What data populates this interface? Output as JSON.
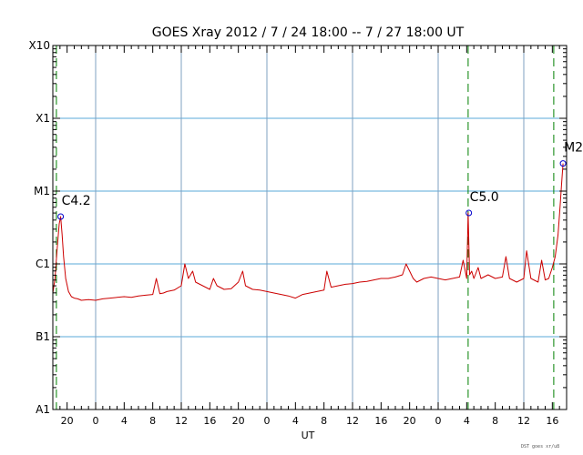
{
  "chart_data": {
    "type": "line",
    "title": "GOES Xray   2012 /  7 / 24   18:00 --  7 / 27   18:00   UT",
    "xlabel": "UT",
    "ylabel": "",
    "footer": "DST goes xr/u8",
    "x_unit": "hours since 2012-07-24 18:00 UT",
    "xlim": [
      0,
      72
    ],
    "y_scale": "log",
    "ylim_log10_wm2": [
      -8,
      -3
    ],
    "y_ticks": [
      {
        "label": "A1",
        "log10": -8
      },
      {
        "label": "B1",
        "log10": -7
      },
      {
        "label": "C1",
        "log10": -6
      },
      {
        "label": "M1",
        "log10": -5
      },
      {
        "label": "X1",
        "log10": -4
      },
      {
        "label": "X10",
        "log10": -3
      }
    ],
    "x_ticks": [
      {
        "label": "20",
        "x": 2
      },
      {
        "label": "0",
        "x": 6
      },
      {
        "label": "4",
        "x": 10
      },
      {
        "label": "8",
        "x": 14
      },
      {
        "label": "12",
        "x": 18
      },
      {
        "label": "16",
        "x": 22
      },
      {
        "label": "20",
        "x": 26
      },
      {
        "label": "0",
        "x": 30
      },
      {
        "label": "4",
        "x": 34
      },
      {
        "label": "8",
        "x": 38
      },
      {
        "label": "12",
        "x": 42
      },
      {
        "label": "16",
        "x": 46
      },
      {
        "label": "20",
        "x": 50
      },
      {
        "label": "0",
        "x": 54
      },
      {
        "label": "4",
        "x": 58
      },
      {
        "label": "8",
        "x": 62
      },
      {
        "label": "12",
        "x": 66
      },
      {
        "label": "16",
        "x": 70
      }
    ],
    "day_boundaries_x": [
      6,
      30,
      54
    ],
    "flare_lines_x": [
      0.5,
      58.2,
      70.2
    ],
    "grid": true,
    "colors": {
      "flux": "#cc0000",
      "grid": "#5aaad9",
      "flare_line": "#008000",
      "marker": "#0000cc"
    },
    "annotations": [
      {
        "label": "C4.2",
        "x": 1.1,
        "log10": -5.35
      },
      {
        "label": "C5.0",
        "x": 58.3,
        "log10": -5.3
      },
      {
        "label": "M2.",
        "x": 71.5,
        "log10": -4.62
      }
    ],
    "series": [
      {
        "name": "",
        "x": [
          0,
          0.3,
          0.6,
          0.9,
          1.1,
          1.3,
          1.5,
          1.8,
          2.2,
          2.6,
          3,
          3.5,
          4,
          5,
          6,
          7,
          8,
          9,
          10,
          11,
          12,
          13,
          14,
          14.5,
          15,
          15.5,
          16,
          17,
          18,
          18.5,
          19,
          19.6,
          20,
          21,
          22,
          22.5,
          23,
          24,
          25,
          26,
          26.6,
          27,
          28,
          29,
          30,
          31,
          32,
          33,
          34,
          35,
          36,
          37,
          38,
          38.4,
          39,
          40,
          41,
          42,
          43,
          44,
          45,
          46,
          47,
          48,
          49,
          49.5,
          50,
          50.5,
          51,
          52,
          53,
          54,
          55,
          56,
          57,
          57.5,
          58,
          58.2,
          58.4,
          58.7,
          59,
          59.6,
          60,
          61,
          62,
          63,
          63.5,
          64,
          65,
          66,
          66.4,
          67,
          68,
          68.5,
          69,
          69.5,
          70,
          70.4,
          70.8,
          71.1,
          71.3,
          71.5
        ],
        "log10": [
          -6.4,
          -6.2,
          -5.8,
          -5.45,
          -5.35,
          -5.6,
          -5.9,
          -6.2,
          -6.38,
          -6.45,
          -6.47,
          -6.48,
          -6.5,
          -6.49,
          -6.5,
          -6.48,
          -6.47,
          -6.46,
          -6.45,
          -6.46,
          -6.44,
          -6.43,
          -6.42,
          -6.2,
          -6.41,
          -6.4,
          -6.38,
          -6.36,
          -6.3,
          -6.0,
          -6.2,
          -6.1,
          -6.25,
          -6.3,
          -6.35,
          -6.2,
          -6.3,
          -6.35,
          -6.34,
          -6.25,
          -6.1,
          -6.3,
          -6.35,
          -6.36,
          -6.38,
          -6.4,
          -6.42,
          -6.44,
          -6.47,
          -6.42,
          -6.4,
          -6.38,
          -6.36,
          -6.1,
          -6.32,
          -6.3,
          -6.28,
          -6.27,
          -6.25,
          -6.24,
          -6.22,
          -6.2,
          -6.2,
          -6.18,
          -6.15,
          -6.0,
          -6.1,
          -6.2,
          -6.25,
          -6.2,
          -6.18,
          -6.2,
          -6.22,
          -6.2,
          -6.18,
          -5.95,
          -6.2,
          -5.3,
          -6.15,
          -6.1,
          -6.2,
          -6.05,
          -6.2,
          -6.15,
          -6.2,
          -6.18,
          -5.9,
          -6.2,
          -6.25,
          -6.2,
          -5.82,
          -6.2,
          -6.25,
          -5.95,
          -6.22,
          -6.2,
          -6.05,
          -5.9,
          -5.6,
          -5.2,
          -4.9,
          -4.62
        ]
      }
    ]
  }
}
